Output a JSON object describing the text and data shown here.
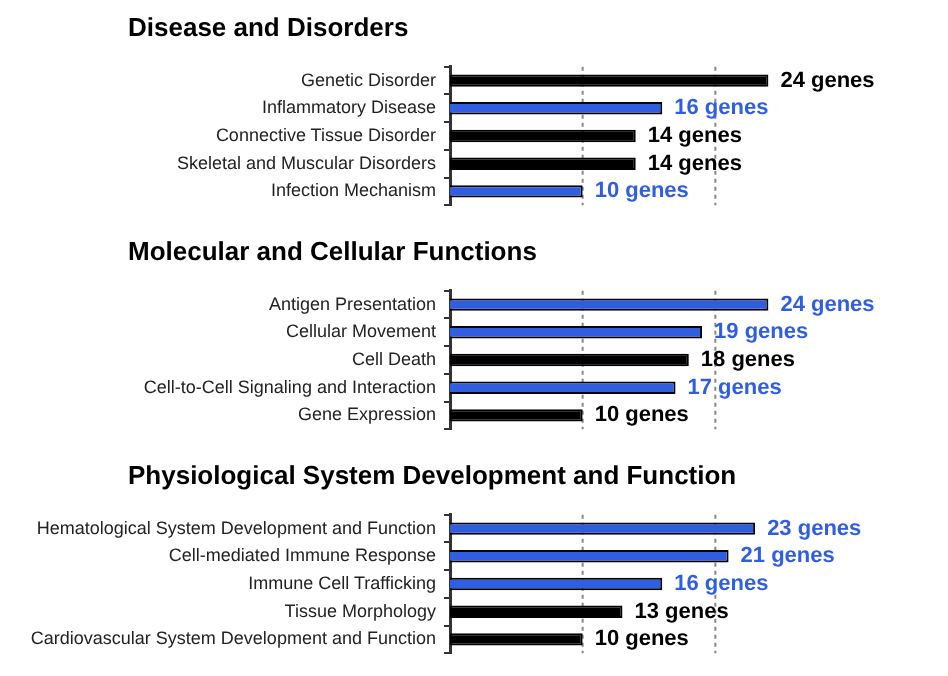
{
  "chart_data": [
    {
      "type": "bar",
      "orientation": "horizontal",
      "title": "Disease and Disorders",
      "categories": [
        "Genetic Disorder",
        "Inflammatory Disease",
        "Connective Tissue Disorder",
        "Skeletal and Muscular Disorders",
        "Infection Mechanism"
      ],
      "values": [
        24,
        16,
        14,
        14,
        10
      ],
      "colors": [
        "#000000",
        "#2f5fe0",
        "#000000",
        "#000000",
        "#2f5fe0"
      ],
      "value_labels": [
        "24 genes",
        "16 genes",
        "14 genes",
        "14 genes",
        "10 genes"
      ],
      "ref_lines": [
        {
          "axis": "x",
          "value": 10,
          "line_style": "dashed"
        },
        {
          "axis": "x",
          "value": 20,
          "line_style": "dashed"
        }
      ],
      "tick_labels": "y"
    },
    {
      "type": "bar",
      "orientation": "horizontal",
      "title": "Molecular and Cellular Functions",
      "categories": [
        "Antigen Presentation",
        "Cellular Movement",
        "Cell Death",
        "Cell-to-Cell Signaling and Interaction",
        "Gene Expression"
      ],
      "values": [
        24,
        19,
        18,
        17,
        10
      ],
      "colors": [
        "#2f5fe0",
        "#2f5fe0",
        "#000000",
        "#2f5fe0",
        "#000000"
      ],
      "value_labels": [
        "24 genes",
        "19 genes",
        "18 genes",
        "17 genes",
        "10 genes"
      ],
      "ref_lines": [
        {
          "axis": "x",
          "value": 10,
          "line_style": "dashed"
        },
        {
          "axis": "x",
          "value": 20,
          "line_style": "dashed"
        }
      ],
      "tick_labels": "y"
    },
    {
      "type": "bar",
      "orientation": "horizontal",
      "title": "Physiological System Development and Function",
      "categories": [
        "Hematological System Development and Function",
        "Cell-mediated Immune Response",
        "Immune Cell Trafficking",
        "Tissue Morphology",
        "Cardiovascular System Development and Function"
      ],
      "values": [
        23,
        21,
        16,
        13,
        10
      ],
      "colors": [
        "#2f5fe0",
        "#2f5fe0",
        "#2f5fe0",
        "#000000",
        "#000000"
      ],
      "value_labels": [
        "23 genes",
        "21 genes",
        "16 genes",
        "13 genes",
        "10 genes"
      ],
      "ref_lines": [
        {
          "axis": "x",
          "value": 10,
          "line_style": "dashed"
        },
        {
          "axis": "x",
          "value": 20,
          "line_style": "dashed"
        }
      ],
      "tick_labels": "y"
    }
  ]
}
